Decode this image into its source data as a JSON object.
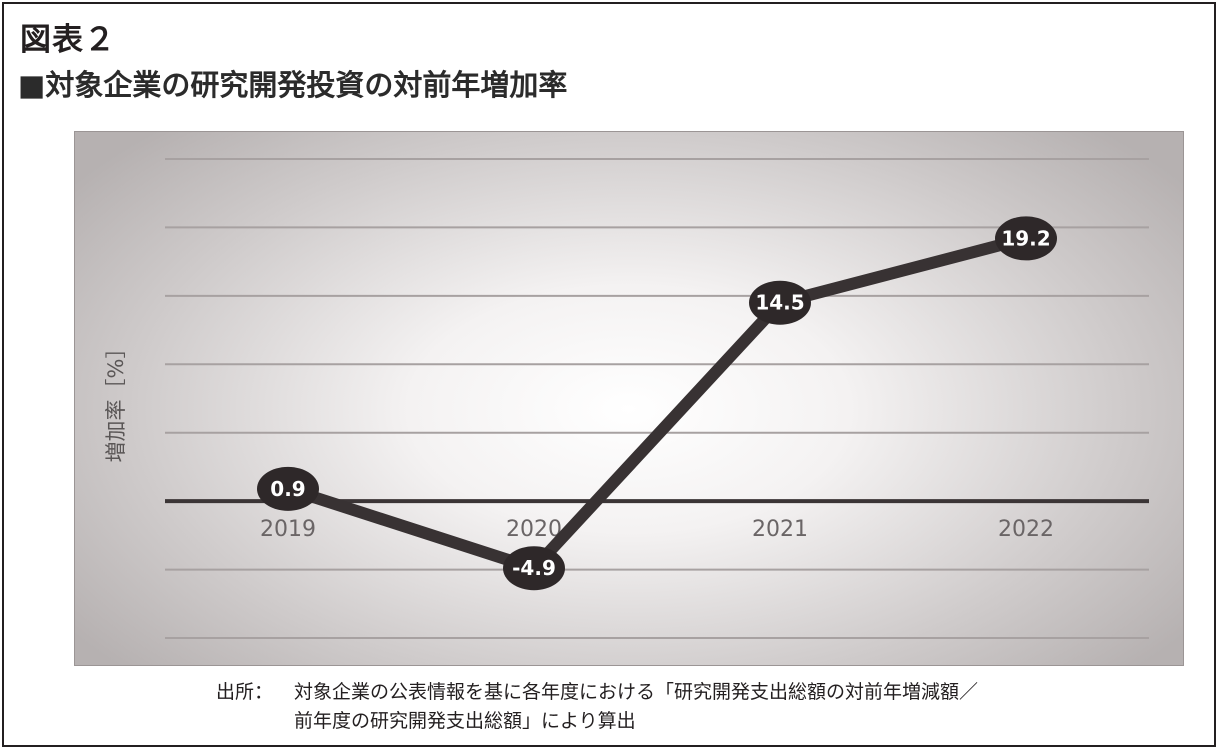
{
  "figure_label": "図表２",
  "chart_data": {
    "type": "line",
    "title": "■対象企業の研究開発投資の対前年増加率",
    "ylabel": "増加率［%］",
    "xlabel": "",
    "categories": [
      "2019",
      "2020",
      "2021",
      "2022"
    ],
    "series": [
      {
        "values": [
          0.9,
          -4.9,
          14.5,
          19.2
        ]
      }
    ],
    "data_labels": [
      "0.9",
      "-4.9",
      "14.5",
      "19.2"
    ],
    "ylim": [
      -10,
      25
    ],
    "grid": true,
    "colors": {
      "line": "#383233",
      "gridline": "#a7a1a1",
      "zero_line": "#3b3536"
    }
  },
  "source": {
    "label": "出所：",
    "line1": "対象企業の公表情報を基に各年度における「研究開発支出総額の対前年増減額／",
    "line2": "前年度の研究開発支出総額」により算出"
  }
}
